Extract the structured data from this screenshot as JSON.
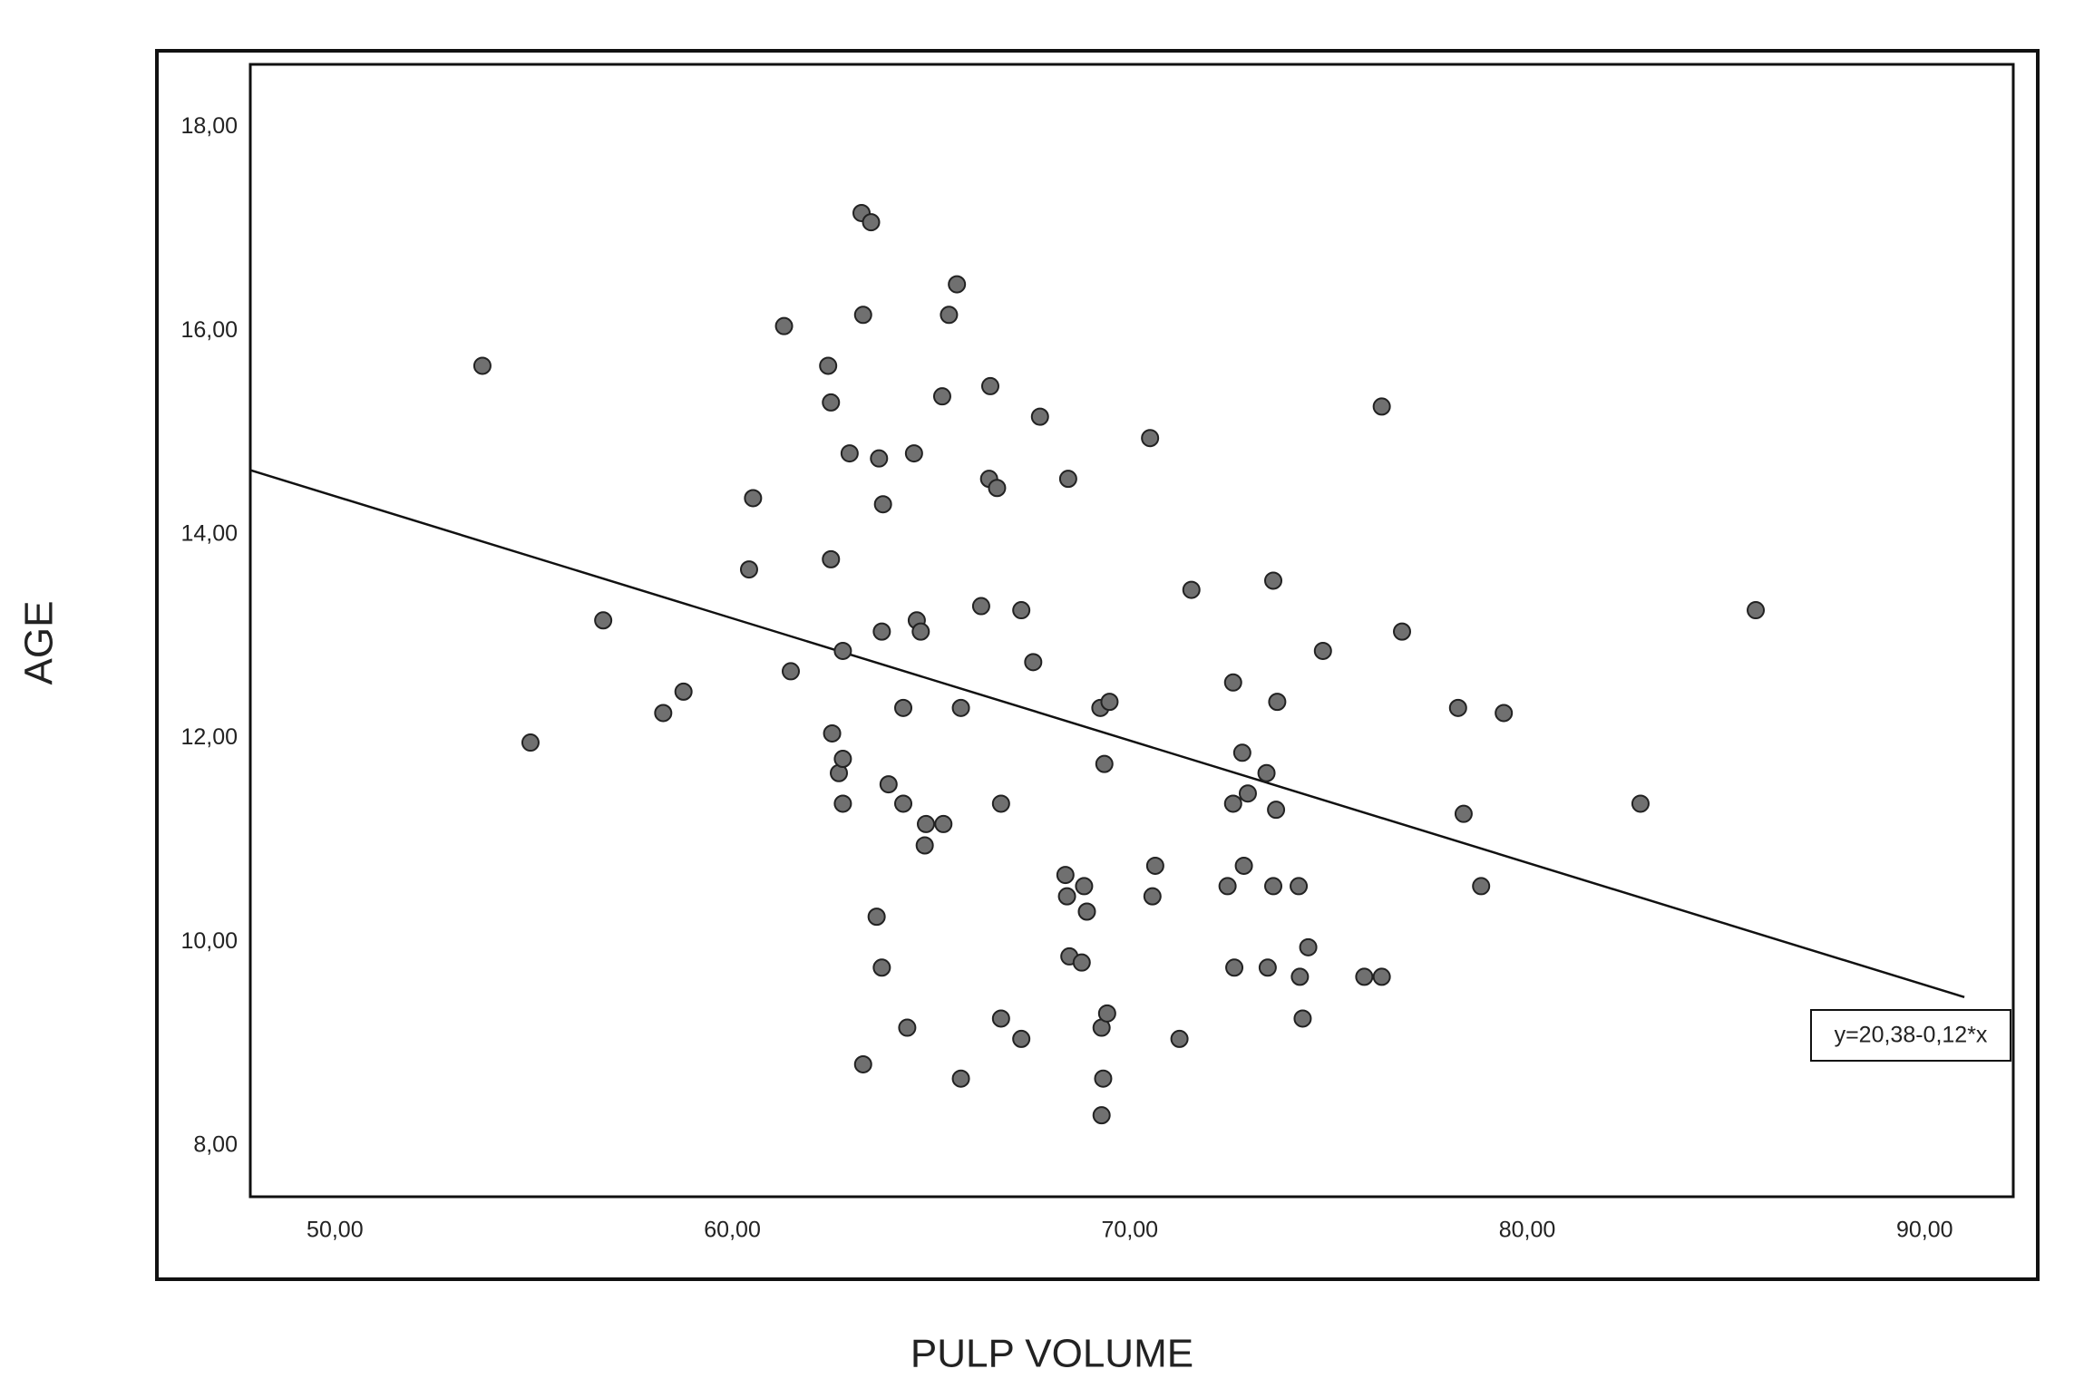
{
  "chart_data": {
    "type": "scatter",
    "x_label": "PULP VOLUME",
    "y_label": "AGE",
    "xlim": [
      47.87,
      92.23
    ],
    "ylim": [
      7.5,
      18.62
    ],
    "xticks": [
      {
        "value": 50,
        "label": "50,00"
      },
      {
        "value": 60,
        "label": "60,00"
      },
      {
        "value": 70,
        "label": "70,00"
      },
      {
        "value": 80,
        "label": "80,00"
      },
      {
        "value": 90,
        "label": "90,00"
      }
    ],
    "yticks": [
      {
        "value": 8,
        "label": "8,00"
      },
      {
        "value": 10,
        "label": "10,00"
      },
      {
        "value": 12,
        "label": "12,00"
      },
      {
        "value": 14,
        "label": "14,00"
      },
      {
        "value": 16,
        "label": "16,00"
      },
      {
        "value": 18,
        "label": "18,00"
      }
    ],
    "grid": false,
    "series": [
      {
        "color": "#707070",
        "x": [
          53.71,
          54.92,
          56.75,
          58.26,
          58.77,
          60.42,
          60.52,
          61.3,
          61.47,
          62.41,
          62.48,
          62.48,
          62.51,
          62.68,
          62.78,
          62.78,
          62.78,
          62.95,
          63.25,
          63.49,
          63.29,
          63.29,
          63.69,
          63.79,
          63.76,
          63.63,
          63.76,
          63.93,
          64.3,
          64.3,
          64.4,
          64.57,
          64.64,
          64.74,
          64.87,
          64.84,
          65.31,
          65.28,
          65.45,
          65.65,
          65.75,
          65.75,
          66.26,
          66.46,
          66.49,
          66.66,
          66.76,
          66.76,
          67.27,
          67.27,
          67.57,
          67.74,
          68.45,
          68.38,
          68.42,
          68.48,
          68.79,
          68.85,
          68.92,
          69.26,
          69.49,
          69.36,
          69.29,
          69.43,
          69.33,
          69.29,
          70.51,
          70.64,
          70.57,
          71.55,
          71.25,
          72.46,
          72.6,
          72.6,
          72.63,
          72.83,
          72.87,
          72.97,
          73.44,
          73.61,
          73.71,
          73.68,
          73.61,
          73.47,
          74.25,
          74.28,
          74.49,
          74.35,
          74.86,
          75.9,
          76.34,
          76.34,
          76.85,
          78.26,
          78.4,
          78.84,
          79.41,
          82.85,
          85.75
        ],
        "values": [
          15.66,
          11.96,
          13.16,
          12.25,
          12.46,
          13.66,
          14.36,
          16.05,
          12.66,
          15.66,
          15.3,
          13.76,
          12.05,
          11.66,
          11.8,
          11.36,
          12.86,
          14.8,
          17.16,
          17.07,
          16.16,
          8.8,
          14.75,
          14.3,
          13.05,
          10.25,
          9.75,
          11.55,
          12.3,
          11.36,
          9.16,
          14.8,
          13.16,
          13.05,
          11.16,
          10.95,
          11.16,
          15.36,
          16.16,
          16.46,
          12.3,
          8.66,
          13.3,
          14.55,
          15.46,
          14.46,
          11.36,
          9.25,
          13.26,
          9.05,
          12.75,
          15.16,
          14.55,
          10.66,
          10.45,
          9.86,
          9.8,
          10.55,
          10.3,
          12.3,
          12.36,
          11.75,
          9.16,
          9.3,
          8.66,
          8.3,
          14.95,
          10.75,
          10.45,
          13.46,
          9.05,
          10.55,
          12.55,
          11.36,
          9.75,
          11.86,
          10.75,
          11.46,
          11.66,
          13.55,
          12.36,
          11.3,
          10.55,
          9.75,
          10.55,
          9.66,
          9.95,
          9.25,
          12.86,
          9.66,
          9.66,
          15.26,
          13.05,
          12.3,
          11.26,
          10.55,
          12.25,
          11.36,
          13.26
        ]
      }
    ],
    "fit": {
      "intercept": 20.38,
      "slope": -0.12,
      "x_range": [
        47.87,
        91.0
      ],
      "label": "y=20,38-0,12*x",
      "color": "#111111"
    }
  }
}
